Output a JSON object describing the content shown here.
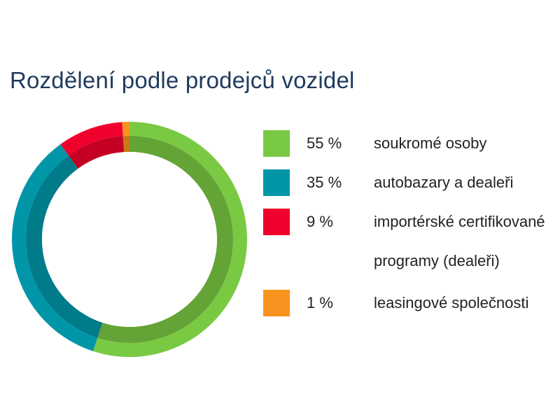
{
  "title": "Rozdělení podle prodejců vozidel",
  "chart_data": {
    "type": "pie",
    "title": "Rozdělení podle prodejců vozidel",
    "categories": [
      "soukromé osoby",
      "autobazary a dealeři",
      "importérské certifikované programy (dealeři)",
      "leasingové společnosti"
    ],
    "values": [
      55,
      35,
      9,
      1
    ],
    "value_labels": [
      "55 %",
      "35 %",
      "9 %",
      "1 %"
    ],
    "colors": [
      "#7ac943",
      "#0096a8",
      "#f0002d",
      "#f7931e"
    ],
    "inner_ring_color": "#57a84a",
    "hole": true,
    "legend": "right"
  }
}
